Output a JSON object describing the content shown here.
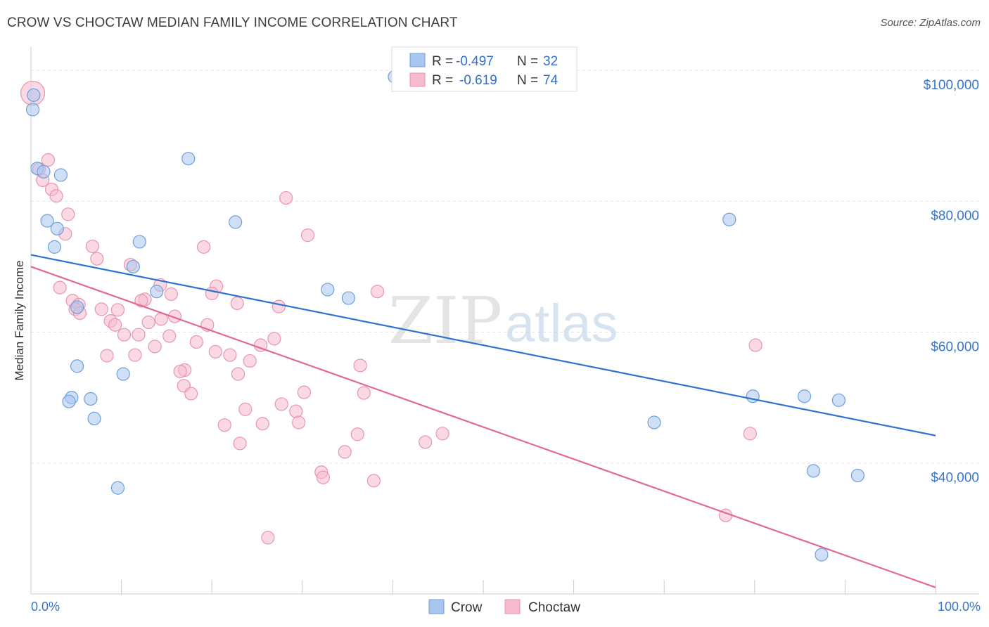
{
  "title": "CROW VS CHOCTAW MEDIAN FAMILY INCOME CORRELATION CHART",
  "source": "Source: ZipAtlas.com",
  "watermark": {
    "zip": "ZIP",
    "atlas": "atlas"
  },
  "chart_data": {
    "type": "scatter",
    "title": "CROW VS CHOCTAW MEDIAN FAMILY INCOME CORRELATION CHART",
    "xlabel": "",
    "ylabel": "Median Family Income",
    "xlim": [
      0,
      100
    ],
    "ylim": [
      20000,
      103000
    ],
    "x_tick_labels": {
      "min": "0.0%",
      "max": "100.0%"
    },
    "x_ticks": [
      0,
      10,
      20,
      30,
      40,
      50,
      60,
      70,
      80,
      90,
      100
    ],
    "y_ticks": [
      {
        "value": 40000,
        "label": "$40,000"
      },
      {
        "value": 60000,
        "label": "$60,000"
      },
      {
        "value": 80000,
        "label": "$80,000"
      },
      {
        "value": 100000,
        "label": "$100,000"
      }
    ],
    "grid": true,
    "legend": {
      "position": "top-center",
      "entries": [
        {
          "name": "Crow",
          "r_label": "R =",
          "r": "-0.497",
          "n_label": "N =",
          "n": "32"
        },
        {
          "name": "Choctaw",
          "r_label": "R =",
          "r": "-0.619",
          "n_label": "N =",
          "n": "74"
        }
      ]
    },
    "colors": {
      "crow_fill": "#a8c6ee",
      "crow_stroke": "#6f9fdb",
      "crow_line": "#2f73d0",
      "choctaw_fill": "#f6b9cd",
      "choctaw_stroke": "#e994b1",
      "choctaw_line": "#e0679a",
      "axis_text": "#3a76c8",
      "grid": "#e2e2e2"
    },
    "series": [
      {
        "name": "Crow",
        "trend": {
          "x0": 0,
          "y0": 71800,
          "x1": 100,
          "y1": 44200
        },
        "points": [
          [
            0.2,
            94000
          ],
          [
            0.7,
            85000
          ],
          [
            1.4,
            84500
          ],
          [
            3.3,
            84000
          ],
          [
            17.4,
            86500
          ],
          [
            40.2,
            99000
          ],
          [
            1.8,
            77000
          ],
          [
            2.9,
            75800
          ],
          [
            2.6,
            73000
          ],
          [
            11.3,
            70000
          ],
          [
            12.0,
            73800
          ],
          [
            22.6,
            76800
          ],
          [
            13.9,
            66200
          ],
          [
            32.8,
            66500
          ],
          [
            35.1,
            65200
          ],
          [
            77.2,
            77200
          ],
          [
            5.1,
            63800
          ],
          [
            5.1,
            54800
          ],
          [
            10.2,
            53600
          ],
          [
            4.5,
            50000
          ],
          [
            4.2,
            49400
          ],
          [
            6.6,
            49800
          ],
          [
            7.0,
            46800
          ],
          [
            68.9,
            46200
          ],
          [
            79.8,
            50200
          ],
          [
            85.5,
            50200
          ],
          [
            89.3,
            49600
          ],
          [
            9.6,
            36200
          ],
          [
            86.5,
            38800
          ],
          [
            91.4,
            38100
          ],
          [
            87.4,
            26000
          ],
          [
            0.3,
            96200
          ]
        ]
      },
      {
        "name": "Choctaw",
        "trend": {
          "x0": 0,
          "y0": 70000,
          "x1": 100,
          "y1": 21000
        },
        "points": [
          [
            0.2,
            96500
          ],
          [
            1.9,
            86300
          ],
          [
            0.9,
            84900
          ],
          [
            1.3,
            83200
          ],
          [
            2.3,
            81800
          ],
          [
            2.8,
            80800
          ],
          [
            4.1,
            78000
          ],
          [
            3.8,
            75000
          ],
          [
            28.2,
            80500
          ],
          [
            30.6,
            74800
          ],
          [
            6.8,
            73100
          ],
          [
            7.3,
            71200
          ],
          [
            19.1,
            73000
          ],
          [
            11.0,
            70300
          ],
          [
            14.3,
            67200
          ],
          [
            20.5,
            67000
          ],
          [
            3.2,
            66800
          ],
          [
            38.3,
            66200
          ],
          [
            4.6,
            64800
          ],
          [
            5.3,
            64200
          ],
          [
            4.9,
            63500
          ],
          [
            5.4,
            62900
          ],
          [
            7.8,
            63500
          ],
          [
            9.6,
            63400
          ],
          [
            12.6,
            65000
          ],
          [
            12.2,
            64800
          ],
          [
            15.5,
            65800
          ],
          [
            20.0,
            65900
          ],
          [
            22.8,
            64400
          ],
          [
            27.4,
            63900
          ],
          [
            8.8,
            61700
          ],
          [
            9.3,
            61100
          ],
          [
            13.0,
            61500
          ],
          [
            15.9,
            62400
          ],
          [
            14.4,
            62000
          ],
          [
            19.5,
            61100
          ],
          [
            10.3,
            59600
          ],
          [
            11.9,
            59600
          ],
          [
            15.3,
            59400
          ],
          [
            18.3,
            58500
          ],
          [
            25.4,
            58000
          ],
          [
            26.9,
            59000
          ],
          [
            80.1,
            58000
          ],
          [
            13.7,
            57800
          ],
          [
            8.4,
            56400
          ],
          [
            11.5,
            56500
          ],
          [
            20.4,
            57000
          ],
          [
            22.0,
            56500
          ],
          [
            17.0,
            54200
          ],
          [
            16.5,
            54000
          ],
          [
            22.9,
            53600
          ],
          [
            24.2,
            55600
          ],
          [
            36.4,
            54900
          ],
          [
            16.9,
            51800
          ],
          [
            17.7,
            50600
          ],
          [
            30.2,
            50800
          ],
          [
            36.8,
            50700
          ],
          [
            27.7,
            49000
          ],
          [
            29.3,
            47900
          ],
          [
            23.7,
            48200
          ],
          [
            29.6,
            46200
          ],
          [
            25.6,
            46000
          ],
          [
            21.4,
            45800
          ],
          [
            36.1,
            44400
          ],
          [
            45.5,
            44500
          ],
          [
            79.5,
            44500
          ],
          [
            23.1,
            43000
          ],
          [
            43.6,
            43200
          ],
          [
            34.7,
            41700
          ],
          [
            32.1,
            38600
          ],
          [
            32.3,
            37800
          ],
          [
            37.9,
            37300
          ],
          [
            76.8,
            32000
          ],
          [
            26.2,
            28600
          ]
        ]
      }
    ]
  }
}
